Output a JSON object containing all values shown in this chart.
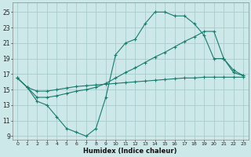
{
  "xlabel": "Humidex (Indice chaleur)",
  "bg_color": "#cce8e8",
  "grid_color": "#aacccc",
  "line_color": "#1a7a6e",
  "x_ticks": [
    0,
    1,
    2,
    3,
    4,
    5,
    6,
    7,
    8,
    9,
    10,
    11,
    12,
    13,
    14,
    15,
    16,
    17,
    18,
    19,
    20,
    21,
    22,
    23
  ],
  "y_ticks": [
    9,
    11,
    13,
    15,
    17,
    19,
    21,
    23,
    25
  ],
  "xlim": [
    -0.5,
    23.5
  ],
  "ylim": [
    8.5,
    26.2
  ],
  "series1_x": [
    0,
    1,
    2,
    3,
    4,
    5,
    6,
    7,
    8,
    9,
    10,
    11,
    12,
    13,
    14,
    15,
    16,
    17,
    18,
    19,
    20,
    21,
    22,
    23
  ],
  "series1_y": [
    16.5,
    15.3,
    13.5,
    13.0,
    11.5,
    10.0,
    9.5,
    9.0,
    10.0,
    14.0,
    19.5,
    21.0,
    21.5,
    23.5,
    25.0,
    25.0,
    24.5,
    24.5,
    23.5,
    22.0,
    19.0,
    19.0,
    17.2,
    16.8
  ],
  "series2_x": [
    0,
    1,
    2,
    3,
    4,
    5,
    6,
    7,
    8,
    9,
    10,
    11,
    12,
    13,
    14,
    15,
    16,
    17,
    18,
    19,
    20,
    21,
    22,
    23
  ],
  "series2_y": [
    16.5,
    15.3,
    14.8,
    14.8,
    15.0,
    15.2,
    15.4,
    15.5,
    15.6,
    15.7,
    15.8,
    15.9,
    16.0,
    16.1,
    16.2,
    16.3,
    16.4,
    16.5,
    16.5,
    16.6,
    16.6,
    16.6,
    16.6,
    16.6
  ],
  "series3_x": [
    0,
    1,
    2,
    3,
    4,
    5,
    6,
    7,
    8,
    9,
    10,
    11,
    12,
    13,
    14,
    15,
    16,
    17,
    18,
    19,
    20,
    21,
    22,
    23
  ],
  "series3_y": [
    16.5,
    15.3,
    14.0,
    14.0,
    14.2,
    14.5,
    14.8,
    15.0,
    15.3,
    15.8,
    16.5,
    17.2,
    17.8,
    18.5,
    19.2,
    19.8,
    20.5,
    21.2,
    21.8,
    22.5,
    22.5,
    19.0,
    17.5,
    16.8
  ]
}
